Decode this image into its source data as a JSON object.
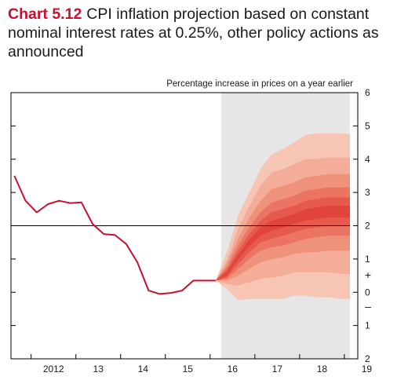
{
  "header": {
    "chart_number": "Chart 5.12",
    "title": "CPI inflation projection based on constant nominal interest rates at 0.25%, other policy actions as announced"
  },
  "chart_data": {
    "type": "area",
    "title": "CPI inflation projection based on constant nominal interest rates at 0.25%, other policy actions as announced",
    "unit_label": "Percentage increase in prices on a year earlier",
    "xlim": [
      2011.55,
      2019.3
    ],
    "ylim": [
      -2,
      6
    ],
    "y_ticks": [
      -2,
      -1,
      0,
      1,
      2,
      3,
      4,
      5,
      6
    ],
    "y_tick_labels": [
      "2",
      "1",
      "0",
      "1",
      "2",
      "3",
      "4",
      "5",
      "6"
    ],
    "sign_labels": {
      "plus": "+",
      "minus": "–"
    },
    "x_ticks": [
      2012,
      2013,
      2014,
      2015,
      2016,
      2017,
      2018,
      2019
    ],
    "x_tick_labels": [
      "2012",
      "13",
      "14",
      "15",
      "16",
      "17",
      "18",
      "19"
    ],
    "target_line": 2,
    "projection_start": 2016.25,
    "grid": false,
    "colors": {
      "history_line": "#c8102e",
      "shade": "#e6e6e6",
      "fan_bands": [
        "#f6c5b4",
        "#f3ad98",
        "#ef927b",
        "#eb7562",
        "#e65a4d",
        "#e0443c"
      ]
    },
    "series": [
      {
        "values": [
          [
            2011.625,
            3.5
          ],
          [
            2011.875,
            2.75
          ],
          [
            2012.125,
            2.4
          ],
          [
            2012.375,
            2.65
          ],
          [
            2012.625,
            2.75
          ],
          [
            2012.875,
            2.68
          ],
          [
            2013.125,
            2.7
          ],
          [
            2013.375,
            2.05
          ],
          [
            2013.625,
            1.75
          ],
          [
            2013.875,
            1.72
          ],
          [
            2014.125,
            1.45
          ],
          [
            2014.375,
            0.9
          ],
          [
            2014.625,
            0.05
          ],
          [
            2014.875,
            -0.05
          ],
          [
            2015.125,
            -0.02
          ],
          [
            2015.375,
            0.05
          ],
          [
            2015.625,
            0.35
          ],
          [
            2015.875,
            0.35
          ],
          [
            2016.125,
            0.35
          ]
        ]
      }
    ],
    "fan_chart": {
      "x": [
        2016.125,
        2016.375,
        2016.625,
        2016.875,
        2017.125,
        2017.375,
        2017.625,
        2017.875,
        2018.125,
        2018.375,
        2018.625,
        2018.875,
        2019.125
      ],
      "bands": [
        {
          "lower": [
            0.35,
            0.1,
            -0.25,
            -0.2,
            -0.2,
            -0.2,
            -0.2,
            -0.1,
            -0.1,
            -0.15,
            -0.15,
            -0.2,
            -0.2
          ],
          "upper": [
            0.35,
            1.2,
            2.3,
            3.0,
            3.7,
            4.15,
            4.3,
            4.5,
            4.72,
            4.78,
            4.78,
            4.78,
            4.75
          ]
        },
        {
          "lower": [
            0.35,
            0.25,
            0.2,
            0.3,
            0.4,
            0.45,
            0.5,
            0.6,
            0.6,
            0.6,
            0.6,
            0.55,
            0.55
          ],
          "upper": [
            0.35,
            0.95,
            1.9,
            2.6,
            3.2,
            3.6,
            3.7,
            3.85,
            4.0,
            4.0,
            4.05,
            4.05,
            4.05
          ]
        },
        {
          "lower": [
            0.35,
            0.35,
            0.5,
            0.7,
            0.9,
            1.0,
            1.05,
            1.15,
            1.2,
            1.2,
            1.25,
            1.25,
            1.25
          ],
          "upper": [
            0.35,
            0.85,
            1.6,
            2.25,
            2.75,
            3.1,
            3.2,
            3.3,
            3.45,
            3.5,
            3.55,
            3.55,
            3.55
          ]
        },
        {
          "lower": [
            0.35,
            0.4,
            0.7,
            1.0,
            1.25,
            1.35,
            1.4,
            1.5,
            1.6,
            1.65,
            1.7,
            1.7,
            1.7
          ],
          "upper": [
            0.35,
            0.75,
            1.4,
            1.95,
            2.4,
            2.7,
            2.8,
            2.9,
            3.05,
            3.1,
            3.15,
            3.15,
            3.15
          ]
        },
        {
          "lower": [
            0.35,
            0.45,
            0.85,
            1.2,
            1.5,
            1.6,
            1.7,
            1.8,
            1.9,
            1.95,
            2.0,
            2.0,
            2.0
          ],
          "upper": [
            0.35,
            0.68,
            1.25,
            1.75,
            2.15,
            2.4,
            2.5,
            2.6,
            2.75,
            2.8,
            2.85,
            2.85,
            2.85
          ]
        },
        {
          "lower": [
            0.35,
            0.5,
            0.98,
            1.38,
            1.7,
            1.85,
            1.95,
            2.05,
            2.15,
            2.2,
            2.25,
            2.25,
            2.25
          ],
          "upper": [
            0.35,
            0.62,
            1.12,
            1.58,
            1.95,
            2.15,
            2.25,
            2.35,
            2.5,
            2.55,
            2.6,
            2.6,
            2.6
          ]
        }
      ]
    }
  }
}
